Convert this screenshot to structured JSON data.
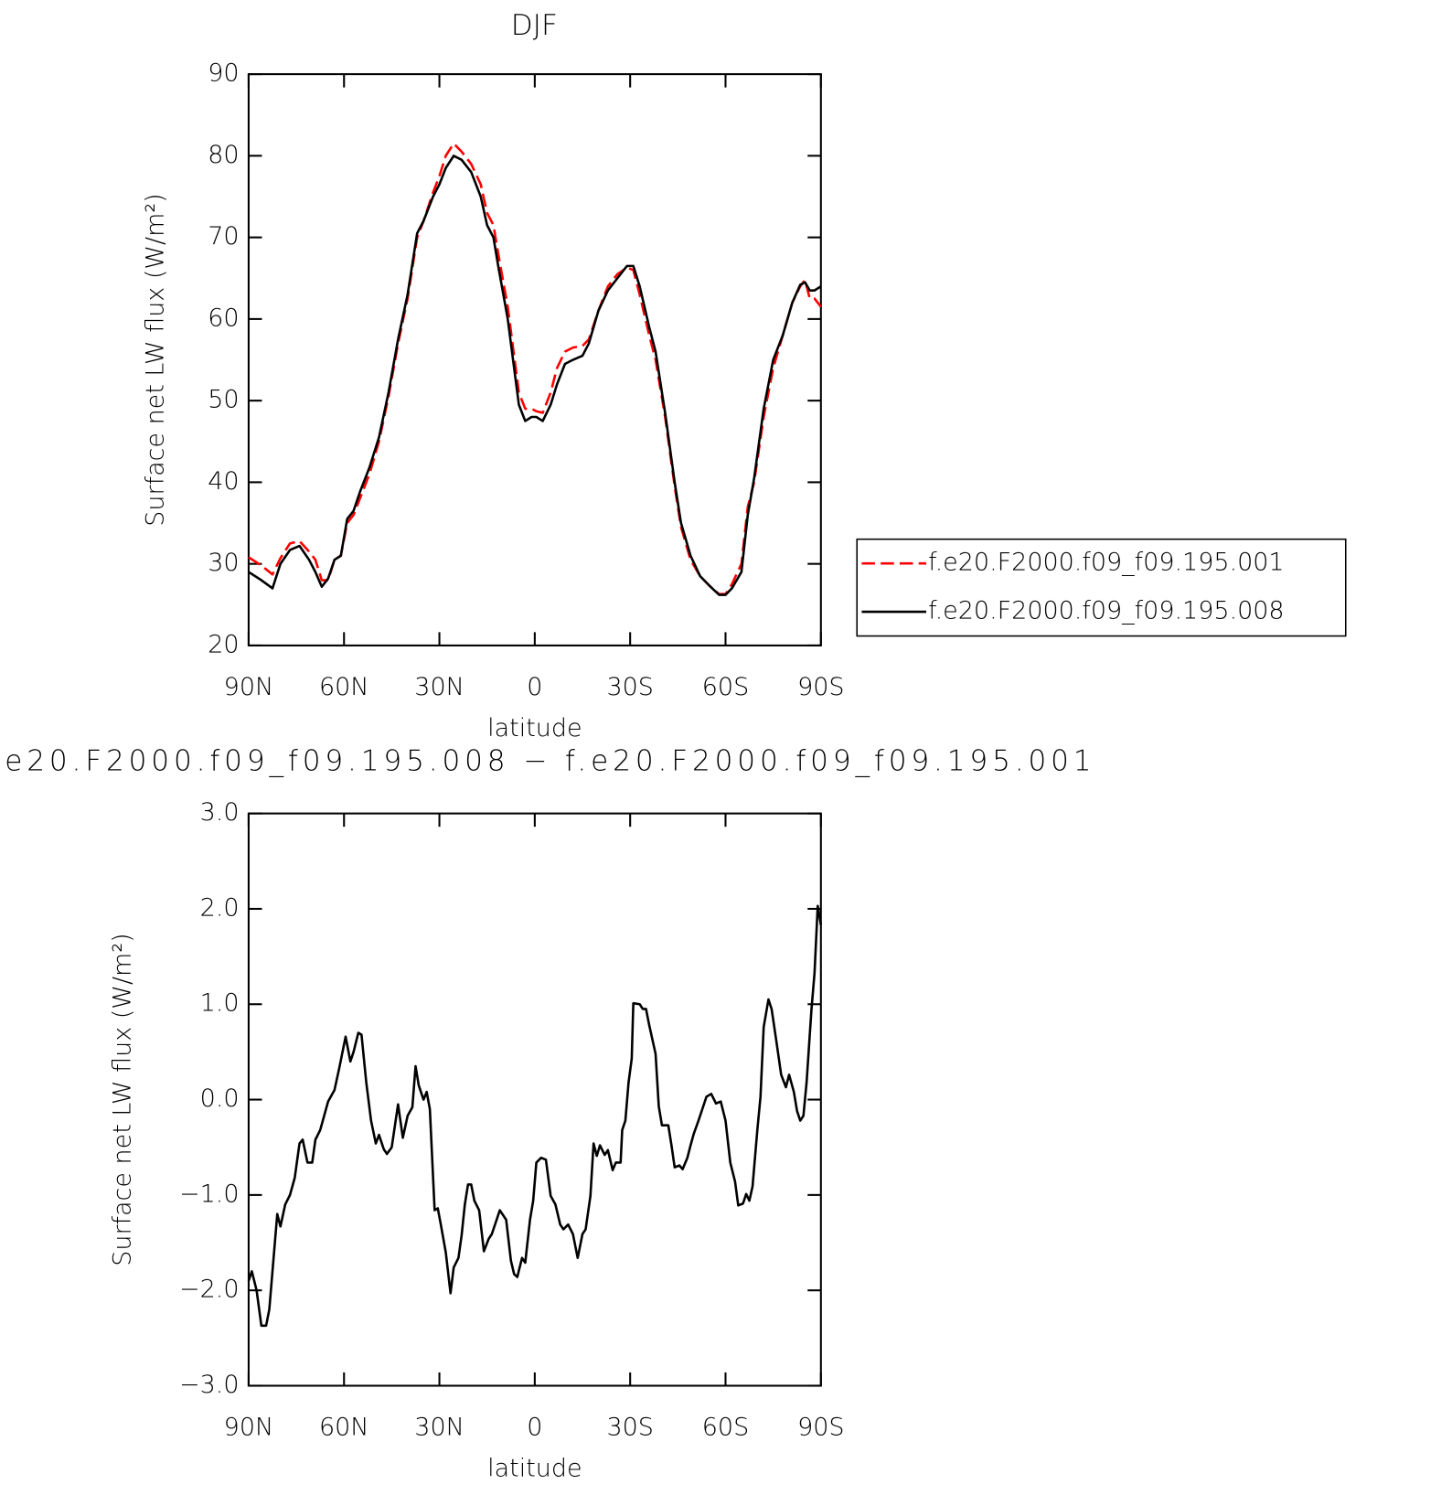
{
  "chart_data": [
    {
      "type": "line",
      "title": "DJF",
      "x_label": "latitude",
      "y_label": "Surface net LW flux (W/m²)",
      "xlim": [
        90,
        -90
      ],
      "ylim": [
        20,
        90
      ],
      "xticks": [
        {
          "value": 90,
          "label": "90N"
        },
        {
          "value": 60,
          "label": "60N"
        },
        {
          "value": 30,
          "label": "30N"
        },
        0,
        {
          "value": -30,
          "label": "30S"
        },
        {
          "value": -60,
          "label": "60S"
        },
        {
          "value": -90,
          "label": "90S"
        }
      ],
      "yticks": [
        20,
        30,
        40,
        50,
        60,
        70,
        80,
        90
      ],
      "legend": "right",
      "x": [
        90,
        86,
        82.5,
        80,
        77,
        74,
        71,
        69,
        67,
        65,
        63,
        61,
        59,
        57,
        55,
        52,
        49,
        46,
        43,
        40,
        37,
        35,
        32,
        30,
        28,
        25.5,
        23,
        20,
        17,
        15,
        13,
        11.5,
        8.5,
        6.5,
        5,
        3,
        1,
        -0.5,
        -2.5,
        -5,
        -7,
        -9.5,
        -12,
        -15,
        -17,
        -20,
        -23,
        -26,
        -29,
        -31,
        -33,
        -36,
        -38,
        -41,
        -44,
        -46,
        -49,
        -52,
        -55,
        -58,
        -60,
        -62,
        -65,
        -67,
        -69,
        -72,
        -75,
        -78,
        -81,
        -83.5,
        -85,
        -86.5,
        -88,
        -90
      ],
      "series": [
        {
          "name": "f.e20.F2000.f09_f09.195.001",
          "color": "#ff0000",
          "dash": "dashed",
          "values": [
            30.8,
            29.8,
            28.7,
            30.7,
            32.5,
            32.8,
            31.5,
            30.5,
            28,
            28,
            30.5,
            31,
            35,
            36,
            38,
            41,
            45,
            50.5,
            57,
            62.5,
            70,
            72,
            75.5,
            77.5,
            80,
            81.5,
            80.5,
            79,
            76.5,
            73,
            71.5,
            68,
            61.5,
            55.5,
            51,
            49,
            49,
            48.7,
            48.5,
            51,
            54,
            56,
            56.5,
            56.7,
            57.5,
            61,
            64,
            65.5,
            66.3,
            66,
            63,
            58,
            55,
            48,
            39.5,
            34.5,
            30.5,
            28.5,
            27.3,
            26.3,
            26.3,
            27.5,
            30,
            37,
            40,
            48,
            54,
            58,
            62,
            64,
            64.8,
            62.5,
            62.5,
            61.5
          ]
        },
        {
          "name": "f.e20.F2000.f09_f09.195.008",
          "color": "#000000",
          "dash": "solid",
          "values": [
            29,
            28,
            27,
            30,
            31.7,
            32.2,
            30.5,
            29,
            27.2,
            28.2,
            30.5,
            31,
            35.5,
            36.5,
            38.8,
            41.8,
            45.5,
            51,
            57.5,
            63,
            70.5,
            72,
            75,
            76.5,
            78.5,
            80,
            79.5,
            78,
            75,
            71.5,
            70,
            66.5,
            60,
            54,
            49.5,
            47.5,
            48,
            48,
            47.5,
            49.5,
            52,
            54.5,
            55,
            55.5,
            57,
            61,
            63.5,
            65,
            66.5,
            66.5,
            64,
            59,
            56,
            48.5,
            40,
            35,
            31,
            28.5,
            27.3,
            26.2,
            26.2,
            27,
            29,
            36,
            40.5,
            49,
            55,
            58,
            62,
            64.2,
            64.5,
            63.5,
            63.5,
            64
          ]
        }
      ]
    },
    {
      "type": "line",
      "title": "e20.F2000.f09_f09.195.008 − f.e20.F2000.f09_f09.195.001",
      "x_label": "latitude",
      "y_label": "Surface net LW flux (W/m²)",
      "xlim": [
        90,
        -90
      ],
      "ylim": [
        -3,
        3
      ],
      "xticks": [
        {
          "value": 90,
          "label": "90N"
        },
        {
          "value": 60,
          "label": "60N"
        },
        {
          "value": 30,
          "label": "30N"
        },
        0,
        {
          "value": -30,
          "label": "30S"
        },
        {
          "value": -60,
          "label": "60S"
        },
        {
          "value": -90,
          "label": "90S"
        }
      ],
      "yticks": [
        {
          "value": -3,
          "label": "−3.0"
        },
        {
          "value": -2,
          "label": "−2.0"
        },
        {
          "value": -1,
          "label": "−1.0"
        },
        {
          "value": 0,
          "label": "0.0"
        },
        {
          "value": 1,
          "label": "1.0"
        },
        {
          "value": 2,
          "label": "2.0"
        },
        {
          "value": 3,
          "label": "3.0"
        }
      ],
      "color": "#000000",
      "x": [
        90,
        89,
        87.5,
        86,
        84.5,
        83.5,
        81,
        80,
        78.5,
        77,
        75.5,
        74,
        73,
        71.5,
        70,
        69,
        67.5,
        65,
        63,
        61.5,
        59.5,
        58,
        57,
        55.5,
        54.5,
        53,
        51.5,
        50,
        49,
        47.5,
        46.5,
        45,
        43,
        41.5,
        40,
        38.5,
        37.5,
        36.5,
        35,
        34,
        33,
        31.5,
        30.5,
        29.5,
        28,
        26.5,
        25.5,
        24,
        23,
        22,
        21,
        20,
        19,
        17.5,
        16,
        14.5,
        13.5,
        12,
        11,
        9,
        7.5,
        6.5,
        5.5,
        4,
        3,
        1.5,
        0.5,
        -0.5,
        -2,
        -3.5,
        -5,
        -6.5,
        -8,
        -9,
        -10.5,
        -12,
        -13.5,
        -15,
        -16,
        -17.5,
        -18.5,
        -19.5,
        -20.5,
        -22,
        -23,
        -24.5,
        -25.5,
        -27,
        -27.5,
        -28.5,
        -29.5,
        -30.5,
        -31,
        -33,
        -34,
        -35,
        -36,
        -38,
        -39,
        -40,
        -42,
        -43,
        -44,
        -45.5,
        -46.5,
        -48,
        -49,
        -50,
        -51.5,
        -53,
        -54,
        -55.5,
        -57,
        -58.5,
        -60,
        -61.5,
        -63,
        -64,
        -65.5,
        -66.5,
        -67.5,
        -68.5,
        -70,
        -71,
        -72,
        -73.5,
        -74.5,
        -76,
        -77.5,
        -79,
        -80,
        -81.5,
        -82.5,
        -83.5,
        -84.5,
        -85.5,
        -87,
        -88,
        -89,
        -90
      ],
      "values": [
        -1.9,
        -1.8,
        -2.0,
        -2.37,
        -2.37,
        -2.2,
        -1.2,
        -1.33,
        -1.1,
        -1.0,
        -0.82,
        -0.46,
        -0.42,
        -0.66,
        -0.66,
        -0.42,
        -0.32,
        -0.02,
        0.1,
        0.33,
        0.66,
        0.4,
        0.5,
        0.7,
        0.68,
        0.18,
        -0.22,
        -0.46,
        -0.37,
        -0.52,
        -0.57,
        -0.5,
        -0.05,
        -0.4,
        -0.17,
        -0.08,
        0.35,
        0.15,
        0,
        0.08,
        -0.1,
        -1.16,
        -1.14,
        -1.32,
        -1.6,
        -2.03,
        -1.76,
        -1.66,
        -1.42,
        -1.1,
        -0.89,
        -0.89,
        -1.06,
        -1.16,
        -1.59,
        -1.46,
        -1.41,
        -1.26,
        -1.16,
        -1.26,
        -1.69,
        -1.83,
        -1.86,
        -1.66,
        -1.71,
        -1.26,
        -1.06,
        -0.66,
        -0.61,
        -0.63,
        -1.01,
        -1.1,
        -1.31,
        -1.36,
        -1.31,
        -1.41,
        -1.66,
        -1.41,
        -1.36,
        -1.01,
        -0.46,
        -0.59,
        -0.48,
        -0.58,
        -0.53,
        -0.74,
        -0.66,
        -0.66,
        -0.32,
        -0.22,
        0.18,
        0.43,
        1.01,
        1.0,
        0.95,
        0.95,
        0.78,
        0.48,
        -0.07,
        -0.27,
        -0.27,
        -0.48,
        -0.71,
        -0.69,
        -0.73,
        -0.61,
        -0.48,
        -0.36,
        -0.22,
        -0.07,
        0.03,
        0.06,
        -0.04,
        -0.02,
        -0.22,
        -0.66,
        -0.86,
        -1.11,
        -1.09,
        -0.99,
        -1.06,
        -0.91,
        -0.32,
        0.03,
        0.76,
        1.05,
        0.95,
        0.61,
        0.26,
        0.13,
        0.26,
        0.08,
        -0.12,
        -0.22,
        -0.17,
        0.18,
        0.93,
        1.33,
        2.03,
        1.83
      ]
    }
  ]
}
